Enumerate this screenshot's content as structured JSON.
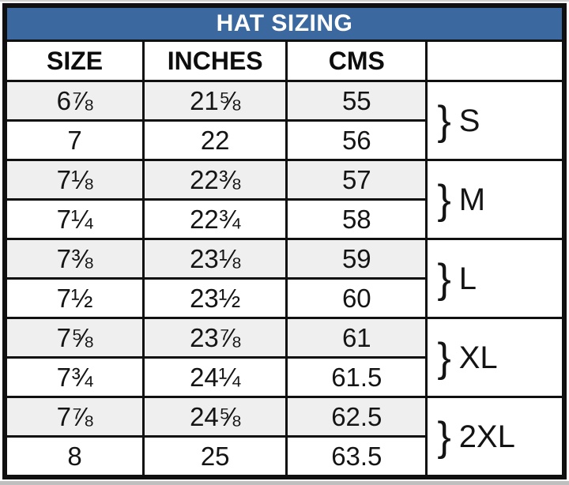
{
  "chart_data": {
    "type": "table",
    "title": "HAT SIZING",
    "columns": [
      "SIZE",
      "INCHES",
      "CMS",
      ""
    ],
    "brace": "}",
    "rows": [
      {
        "size": "6⅞",
        "inches": "21⅝",
        "cms": "55",
        "group": "S"
      },
      {
        "size": "7",
        "inches": "22",
        "cms": "56"
      },
      {
        "size": "7⅛",
        "inches": "22⅜",
        "cms": "57",
        "group": "M"
      },
      {
        "size": "7¼",
        "inches": "22¾",
        "cms": "58"
      },
      {
        "size": "7⅜",
        "inches": "23⅛",
        "cms": "59",
        "group": "L"
      },
      {
        "size": "7½",
        "inches": "23½",
        "cms": "60"
      },
      {
        "size": "7⅝",
        "inches": "23⅞",
        "cms": "61",
        "group": "XL"
      },
      {
        "size": "7¾",
        "inches": "24¼",
        "cms": "61.5"
      },
      {
        "size": "7⅞",
        "inches": "24⅝",
        "cms": "62.5",
        "group": "2XL"
      },
      {
        "size": "8",
        "inches": "25",
        "cms": "63.5"
      }
    ],
    "groups": [
      {
        "label": "S",
        "rows": [
          0,
          1
        ]
      },
      {
        "label": "M",
        "rows": [
          2,
          3
        ]
      },
      {
        "label": "L",
        "rows": [
          4,
          5
        ]
      },
      {
        "label": "XL",
        "rows": [
          6,
          7
        ]
      },
      {
        "label": "2XL",
        "rows": [
          8,
          9
        ]
      }
    ],
    "colors": {
      "title_bg": "#3B689F",
      "title_text": "#FFFFFF",
      "row_shaded": "#F0EFEF",
      "row_plain": "#FFFFFF",
      "border": "#101010",
      "text": "#141414"
    },
    "layout_hints": {
      "shaded_rows": "odd data rows (1st, 3rd, 5th, 7th, 9th)",
      "group_column": "rowspan 2 per size group, white background"
    }
  }
}
